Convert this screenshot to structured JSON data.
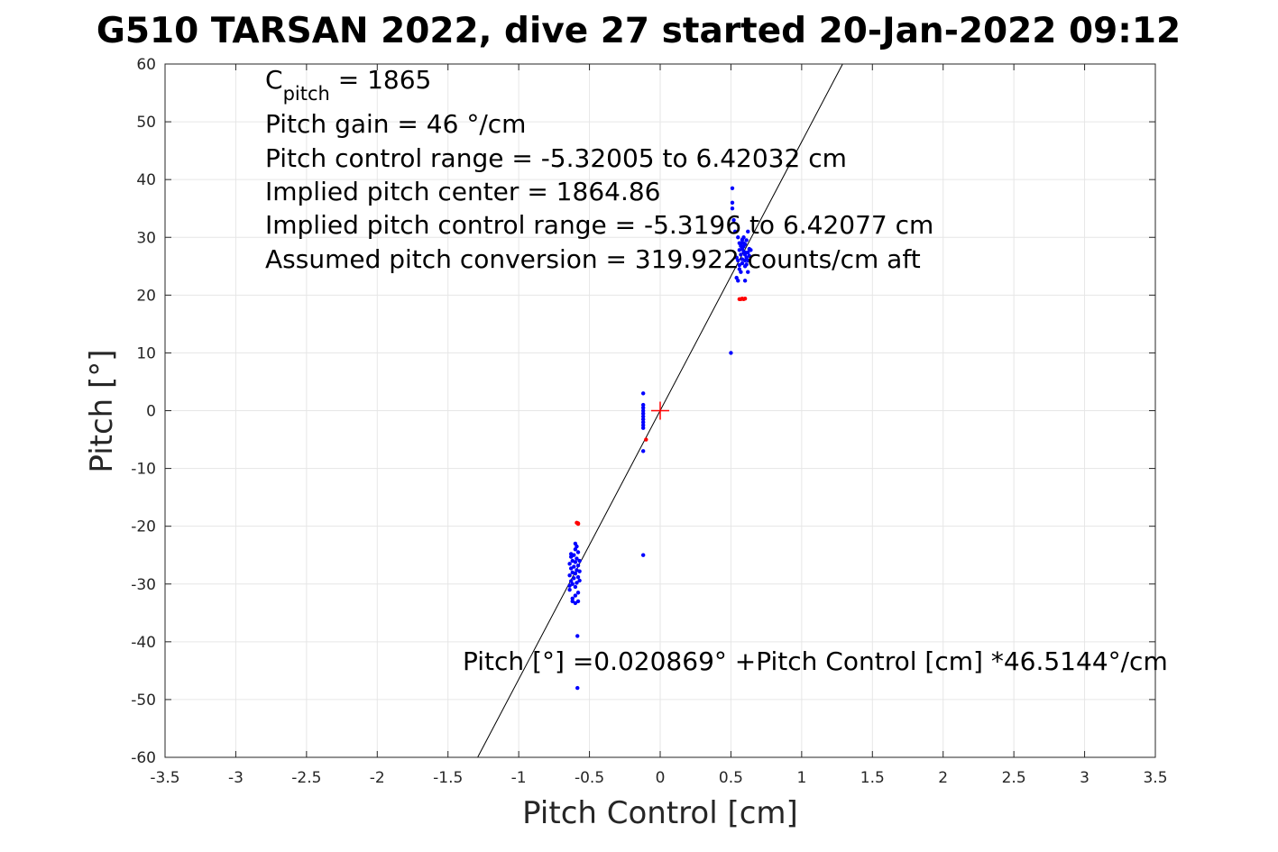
{
  "chart_data": {
    "type": "scatter",
    "title": "G510 TARSAN 2022, dive 27 started 20-Jan-2022 09:12",
    "xlabel": "Pitch Control [cm]",
    "ylabel": "Pitch [°]",
    "xlim": [
      -3.5,
      3.5
    ],
    "ylim": [
      -60,
      60
    ],
    "xticks": [
      -3.5,
      -3,
      -2.5,
      -2,
      -1.5,
      -1,
      -0.5,
      0,
      0.5,
      1,
      1.5,
      2,
      2.5,
      3,
      3.5
    ],
    "xtick_labels": [
      "-3.5",
      "-3",
      "-2.5",
      "-2",
      "-1.5",
      "-1",
      "-0.5",
      "0",
      "0.5",
      "1",
      "1.5",
      "2",
      "2.5",
      "3",
      "3.5"
    ],
    "yticks": [
      -60,
      -50,
      -40,
      -30,
      -20,
      -10,
      0,
      10,
      20,
      30,
      40,
      50,
      60
    ],
    "ytick_labels": [
      "-60",
      "-50",
      "-40",
      "-30",
      "-20",
      "-10",
      "0",
      "10",
      "20",
      "30",
      "40",
      "50",
      "60"
    ],
    "grid": true,
    "fit_line": {
      "intercept": 0.020869,
      "slope": 46.5144,
      "color": "#000000"
    },
    "center_marker": {
      "x": 0,
      "y": 0,
      "color": "#ff0000"
    },
    "series": [
      {
        "color": "#0000ff",
        "points": [
          [
            -0.62,
            -33
          ],
          [
            -0.6,
            -32
          ],
          [
            -0.58,
            -31.5
          ],
          [
            -0.64,
            -31
          ],
          [
            -0.6,
            -30.5
          ],
          [
            -0.62,
            -30
          ],
          [
            -0.59,
            -29.8
          ],
          [
            -0.63,
            -29.5
          ],
          [
            -0.61,
            -29
          ],
          [
            -0.58,
            -28.8
          ],
          [
            -0.64,
            -28.5
          ],
          [
            -0.6,
            -28.2
          ],
          [
            -0.62,
            -28
          ],
          [
            -0.59,
            -27.6
          ],
          [
            -0.63,
            -27.3
          ],
          [
            -0.61,
            -27
          ],
          [
            -0.58,
            -26.8
          ],
          [
            -0.64,
            -26.5
          ],
          [
            -0.6,
            -26.2
          ],
          [
            -0.62,
            -26
          ],
          [
            -0.59,
            -25.6
          ],
          [
            -0.63,
            -25.3
          ],
          [
            -0.61,
            -25
          ],
          [
            -0.58,
            -24.5
          ],
          [
            -0.6,
            -24
          ],
          [
            -0.59,
            -23.5
          ],
          [
            -0.6,
            -23
          ],
          [
            -0.62,
            -32.5
          ],
          [
            -0.6,
            -33.3
          ],
          [
            -0.58,
            -33
          ],
          [
            -0.64,
            -30.3
          ],
          [
            -0.57,
            -29.4
          ],
          [
            -0.57,
            -27.8
          ],
          [
            -0.57,
            -26
          ],
          [
            -0.63,
            -24.8
          ],
          [
            -0.585,
            -39
          ],
          [
            -0.585,
            -48
          ],
          [
            -0.12,
            3
          ],
          [
            -0.12,
            1
          ],
          [
            -0.12,
            0.5
          ],
          [
            -0.12,
            0
          ],
          [
            -0.12,
            -0.5
          ],
          [
            -0.12,
            -1
          ],
          [
            -0.12,
            -1.5
          ],
          [
            -0.12,
            -2
          ],
          [
            -0.12,
            -2.5
          ],
          [
            -0.12,
            -3
          ],
          [
            -0.12,
            -7
          ],
          [
            -0.12,
            -25
          ],
          [
            0.5,
            10
          ],
          [
            0.51,
            38.5
          ],
          [
            0.51,
            36
          ],
          [
            0.51,
            35
          ],
          [
            0.52,
            33
          ],
          [
            0.53,
            31
          ],
          [
            0.55,
            30
          ],
          [
            0.56,
            29
          ],
          [
            0.57,
            28.5
          ],
          [
            0.58,
            28
          ],
          [
            0.59,
            27.5
          ],
          [
            0.6,
            27
          ],
          [
            0.61,
            26.5
          ],
          [
            0.62,
            26
          ],
          [
            0.58,
            25.5
          ],
          [
            0.6,
            25
          ],
          [
            0.56,
            24.5
          ],
          [
            0.62,
            24
          ],
          [
            0.54,
            23
          ],
          [
            0.55,
            22.5
          ],
          [
            0.6,
            22.5
          ],
          [
            0.63,
            28
          ],
          [
            0.61,
            29.5
          ],
          [
            0.62,
            31
          ],
          [
            0.59,
            30
          ],
          [
            0.57,
            27
          ],
          [
            0.55,
            26
          ],
          [
            0.56,
            27.8
          ],
          [
            0.6,
            28.8
          ],
          [
            0.58,
            26.2
          ],
          [
            0.62,
            27.4
          ],
          [
            0.59,
            29
          ],
          [
            0.61,
            25.3
          ],
          [
            0.57,
            24
          ],
          [
            0.6,
            26
          ],
          [
            0.58,
            29.6
          ],
          [
            0.63,
            26.8
          ],
          [
            0.56,
            25.2
          ],
          [
            0.54,
            26.5
          ],
          [
            0.64,
            27.8
          ],
          [
            0.59,
            28.4
          ],
          [
            0.6,
            27.4
          ],
          [
            0.57,
            29
          ]
        ]
      },
      {
        "color": "#ff0000",
        "points": [
          [
            -0.58,
            -19.5
          ],
          [
            -0.59,
            -19.4
          ],
          [
            -0.58,
            -19.6
          ],
          [
            -0.1,
            -5
          ],
          [
            0.57,
            19.3
          ],
          [
            0.58,
            19.4
          ],
          [
            0.59,
            19.3
          ],
          [
            0.6,
            19.4
          ],
          [
            0.56,
            19.3
          ]
        ]
      }
    ],
    "annotations": {
      "cpitch_symbol": "C",
      "cpitch_subscript": "pitch",
      "cpitch_value": " = 1865",
      "pitch_gain": "Pitch gain = 46 °/cm",
      "control_range": "Pitch control range = -5.32005 to 6.42032 cm",
      "implied_center": "Implied pitch center = 1864.86",
      "implied_range": "Implied pitch control range = -5.3196 to 6.42077 cm",
      "conversion": "Assumed pitch conversion = 319.922 counts/cm aft",
      "fit_equation": "Pitch [°] =0.020869° +Pitch Control [cm] *46.5144°/cm"
    }
  }
}
